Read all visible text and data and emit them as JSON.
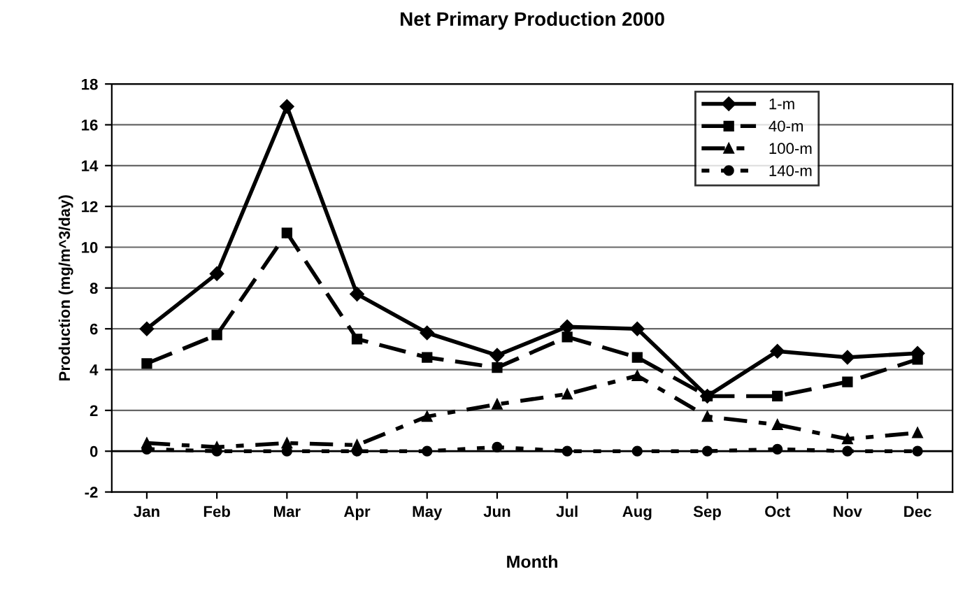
{
  "chart_data": {
    "type": "line",
    "title": "Net Primary Production 2000",
    "xlabel": "Month",
    "ylabel": "Production (mg/m^3/day)",
    "categories": [
      "Jan",
      "Feb",
      "Mar",
      "Apr",
      "May",
      "Jun",
      "Jul",
      "Aug",
      "Sep",
      "Oct",
      "Nov",
      "Dec"
    ],
    "series": [
      {
        "name": "1-m",
        "color": "#000000",
        "marker": "diamond",
        "line_style": "solid",
        "values": [
          6.0,
          8.7,
          16.9,
          7.7,
          5.8,
          4.7,
          6.1,
          6.0,
          2.7,
          4.9,
          4.6,
          4.8
        ]
      },
      {
        "name": "40-m",
        "color": "#000000",
        "marker": "square",
        "line_style": "dashed",
        "values": [
          4.3,
          5.7,
          10.7,
          5.5,
          4.6,
          4.1,
          5.6,
          4.6,
          2.7,
          2.7,
          3.4,
          4.5
        ]
      },
      {
        "name": "100-m",
        "color": "#000000",
        "marker": "triangle",
        "line_style": "dashed",
        "values": [
          0.4,
          0.2,
          0.4,
          0.3,
          1.7,
          2.3,
          2.8,
          3.7,
          1.7,
          1.3,
          0.6,
          0.9
        ]
      },
      {
        "name": "140-m",
        "color": "#000000",
        "marker": "circle",
        "line_style": "dotted",
        "values": [
          0.1,
          0.0,
          0.0,
          0.0,
          0.0,
          0.2,
          0.0,
          0.0,
          0.0,
          0.1,
          0.0,
          0.0
        ]
      }
    ],
    "ylim": [
      -2,
      18
    ],
    "yticks": [
      -2,
      0,
      2,
      4,
      6,
      8,
      10,
      12,
      14,
      16,
      18
    ],
    "grid": "y",
    "legend": "top right"
  }
}
